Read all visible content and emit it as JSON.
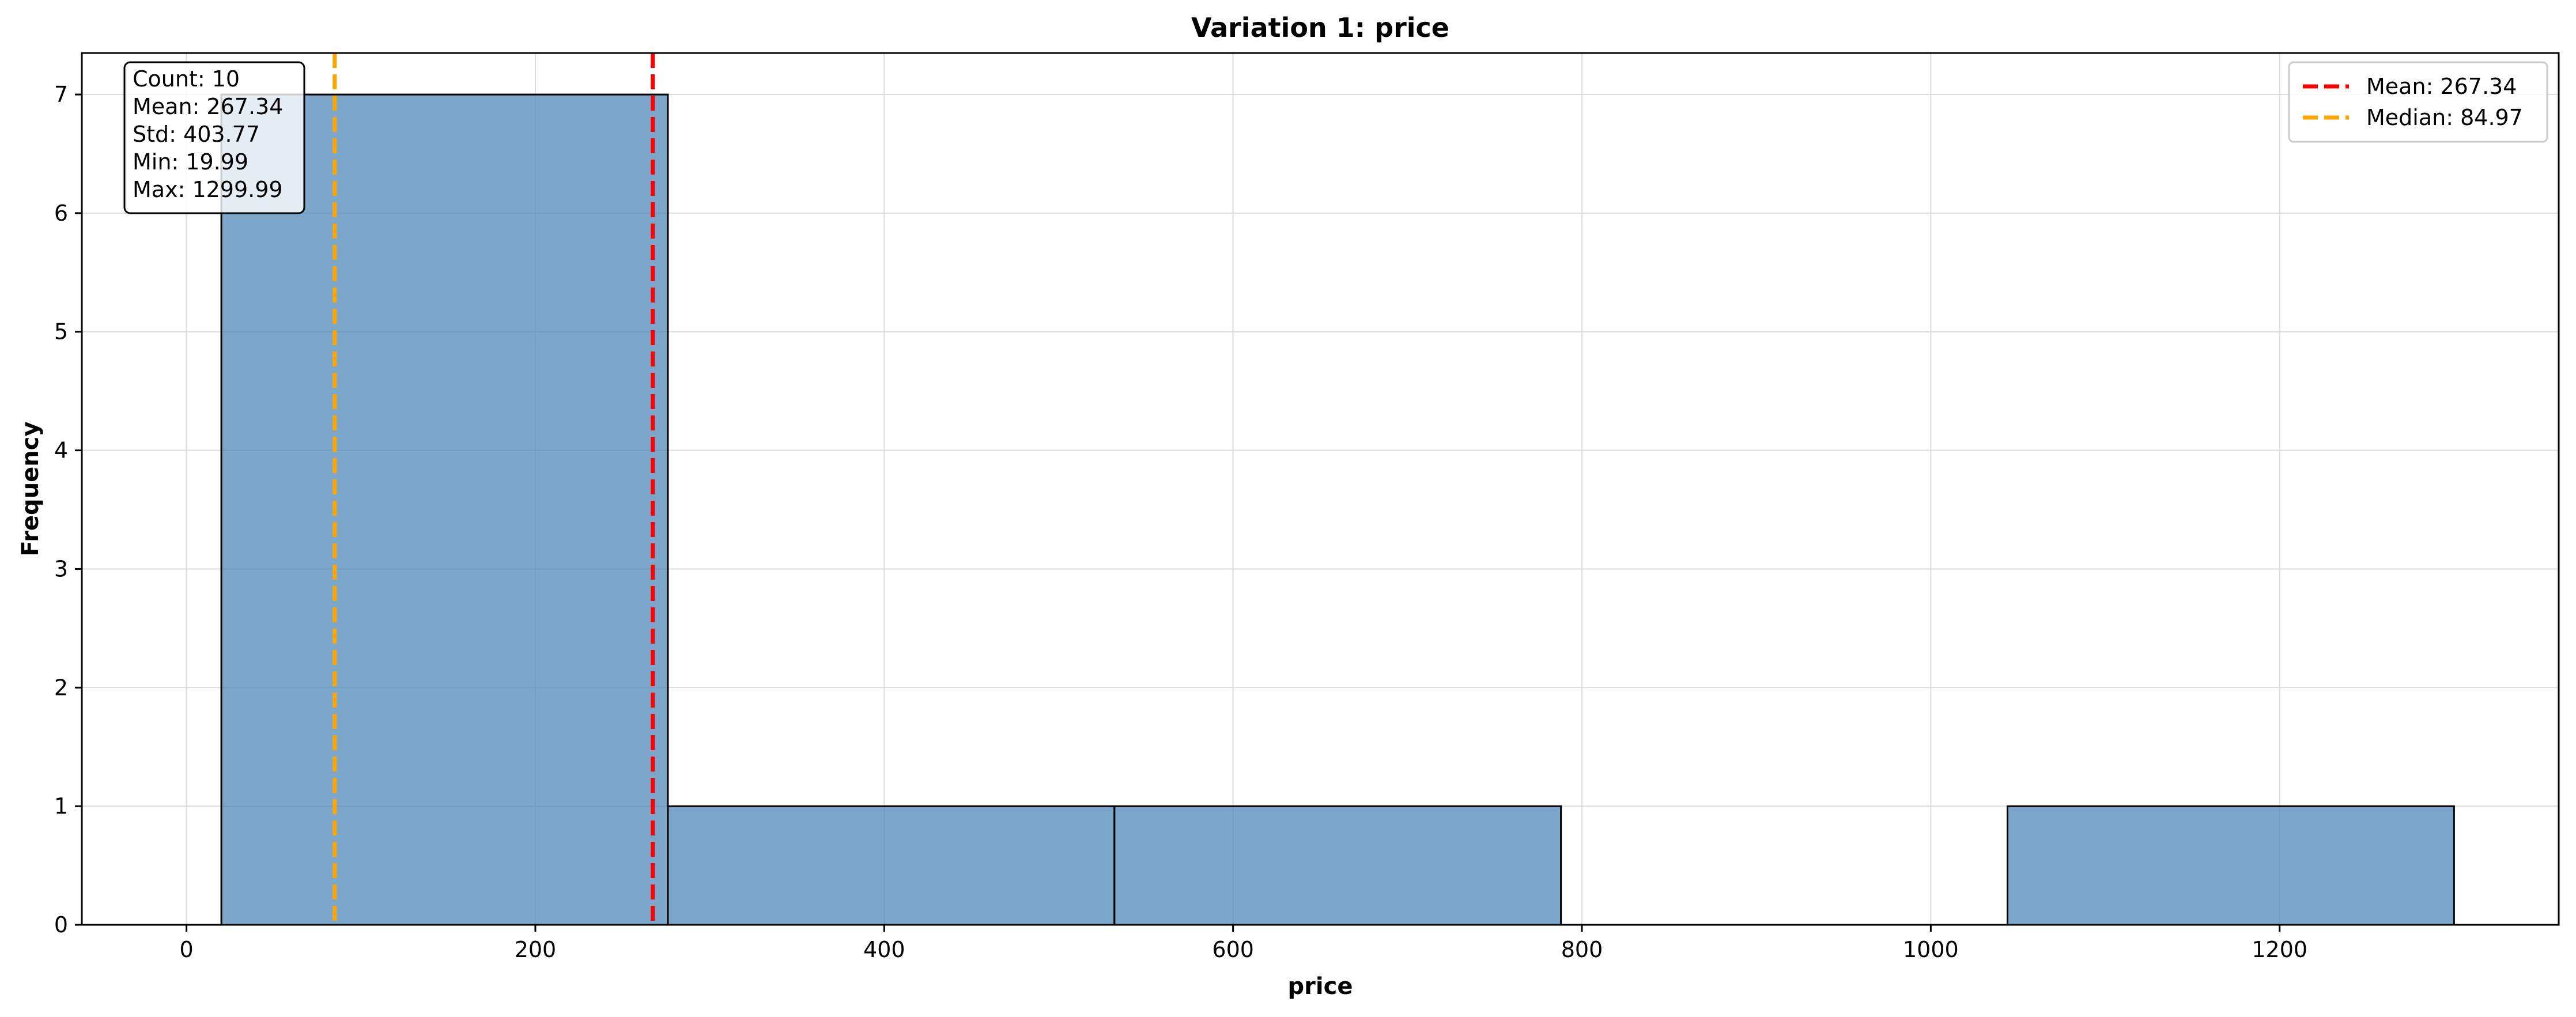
{
  "chart_data": {
    "type": "bar",
    "title": "Variation 1: price",
    "xlabel": "price",
    "ylabel": "Frequency",
    "xlim": [
      -60,
      1360
    ],
    "ylim": [
      0,
      7.35
    ],
    "xticks": [
      0,
      200,
      400,
      600,
      800,
      1000,
      1200
    ],
    "yticks": [
      0,
      1,
      2,
      3,
      4,
      5,
      6,
      7
    ],
    "grid": true,
    "bins": [
      {
        "start": 19.99,
        "end": 275.99,
        "count": 7
      },
      {
        "start": 275.99,
        "end": 531.99,
        "count": 1
      },
      {
        "start": 531.99,
        "end": 787.99,
        "count": 1
      },
      {
        "start": 787.99,
        "end": 1043.99,
        "count": 0
      },
      {
        "start": 1043.99,
        "end": 1299.99,
        "count": 1
      }
    ],
    "bar_color": "#4682b4",
    "reference_lines": [
      {
        "name": "Mean: 267.34",
        "value": 267.34,
        "color": "#ff0000"
      },
      {
        "name": "Median: 84.97",
        "value": 84.97,
        "color": "#ffa500"
      }
    ],
    "legend_position": "top-right",
    "stats_box": {
      "position": "top-left",
      "lines": [
        "Count: 10",
        "Mean: 267.34",
        "Std: 403.77",
        "Min: 19.99",
        "Max: 1299.99"
      ]
    }
  }
}
